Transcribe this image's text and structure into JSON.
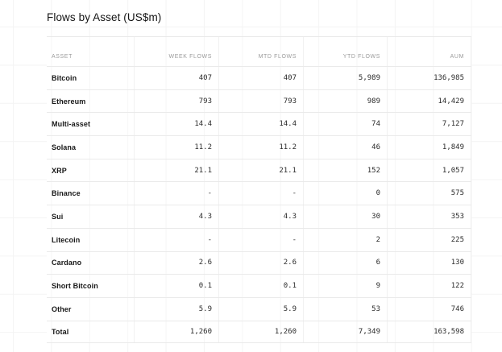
{
  "title": "Flows by Asset (US$m)",
  "table": {
    "columns": [
      {
        "key": "asset",
        "label": "ASSET",
        "align": "left"
      },
      {
        "key": "week",
        "label": "WEEK FLOWS",
        "align": "right"
      },
      {
        "key": "mtd",
        "label": "MTD FLOWS",
        "align": "right"
      },
      {
        "key": "ytd",
        "label": "YTD FLOWS",
        "align": "right"
      },
      {
        "key": "aum",
        "label": "AUM",
        "align": "right"
      }
    ],
    "rows": [
      {
        "asset": "Bitcoin",
        "week": "407",
        "mtd": "407",
        "ytd": "5,989",
        "aum": "136,985"
      },
      {
        "asset": "Ethereum",
        "week": "793",
        "mtd": "793",
        "ytd": "989",
        "aum": "14,429"
      },
      {
        "asset": "Multi-asset",
        "week": "14.4",
        "mtd": "14.4",
        "ytd": "74",
        "aum": "7,127"
      },
      {
        "asset": "Solana",
        "week": "11.2",
        "mtd": "11.2",
        "ytd": "46",
        "aum": "1,849"
      },
      {
        "asset": "XRP",
        "week": "21.1",
        "mtd": "21.1",
        "ytd": "152",
        "aum": "1,057"
      },
      {
        "asset": "Binance",
        "week": "-",
        "mtd": "-",
        "ytd": "0",
        "aum": "575"
      },
      {
        "asset": "Sui",
        "week": "4.3",
        "mtd": "4.3",
        "ytd": "30",
        "aum": "353"
      },
      {
        "asset": "Litecoin",
        "week": "-",
        "mtd": "-",
        "ytd": "2",
        "aum": "225"
      },
      {
        "asset": "Cardano",
        "week": "2.6",
        "mtd": "2.6",
        "ytd": "6",
        "aum": "130"
      },
      {
        "asset": "Short Bitcoin",
        "week": "0.1",
        "mtd": "0.1",
        "ytd": "9",
        "aum": "122"
      },
      {
        "asset": "Other",
        "week": "5.9",
        "mtd": "5.9",
        "ytd": "53",
        "aum": "746"
      },
      {
        "asset": "Total",
        "week": "1,260",
        "mtd": "1,260",
        "ytd": "7,349",
        "aum": "163,598"
      }
    ]
  },
  "chart_data": {
    "type": "table",
    "title": "Flows by Asset (US$m)",
    "columns": [
      "ASSET",
      "WEEK FLOWS",
      "MTD FLOWS",
      "YTD FLOWS",
      "AUM"
    ],
    "rows": [
      [
        "Bitcoin",
        "407",
        "407",
        "5,989",
        "136,985"
      ],
      [
        "Ethereum",
        "793",
        "793",
        "989",
        "14,429"
      ],
      [
        "Multi-asset",
        "14.4",
        "14.4",
        "74",
        "7,127"
      ],
      [
        "Solana",
        "11.2",
        "11.2",
        "46",
        "1,849"
      ],
      [
        "XRP",
        "21.1",
        "21.1",
        "152",
        "1,057"
      ],
      [
        "Binance",
        "-",
        "-",
        "0",
        "575"
      ],
      [
        "Sui",
        "4.3",
        "4.3",
        "30",
        "353"
      ],
      [
        "Litecoin",
        "-",
        "-",
        "2",
        "225"
      ],
      [
        "Cardano",
        "2.6",
        "2.6",
        "6",
        "130"
      ],
      [
        "Short Bitcoin",
        "0.1",
        "0.1",
        "9",
        "122"
      ],
      [
        "Other",
        "5.9",
        "5.9",
        "53",
        "746"
      ],
      [
        "Total",
        "1,260",
        "1,260",
        "7,349",
        "163,598"
      ]
    ]
  },
  "colors": {
    "background": "#ffffff",
    "grid_line": "#f4f4f4",
    "row_divider": "#eaeaea",
    "header_text": "#9b9b9b",
    "body_text": "#1a1a1a"
  }
}
